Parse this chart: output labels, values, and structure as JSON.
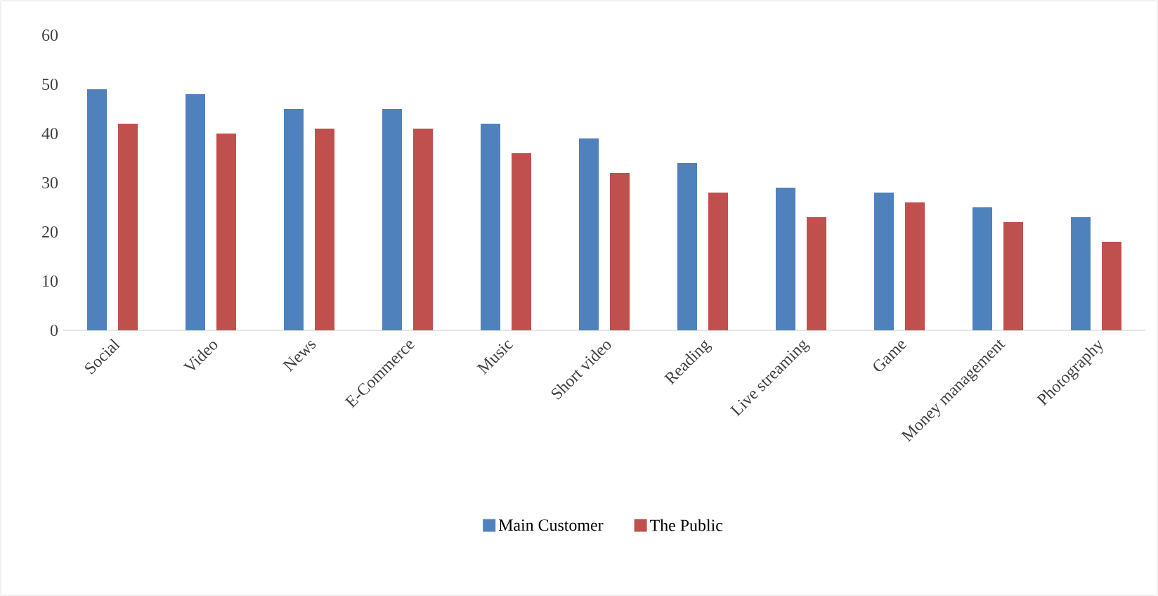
{
  "chart_data": {
    "type": "bar",
    "categories": [
      "Social",
      "Video",
      "News",
      "E-Commerce",
      "Music",
      "Short video",
      "Reading",
      "Live streaming",
      "Game",
      "Money management",
      "Photography"
    ],
    "series": [
      {
        "name": "Main Customer",
        "color": "#4f81bd",
        "values": [
          49,
          48,
          45,
          45,
          42,
          39,
          34,
          29,
          28,
          25,
          23
        ]
      },
      {
        "name": "The Public",
        "color": "#c0504d",
        "values": [
          42,
          40,
          41,
          41,
          36,
          32,
          28,
          23,
          26,
          22,
          18
        ]
      }
    ],
    "ylim": [
      0,
      60
    ],
    "yticks": [
      0,
      10,
      20,
      30,
      40,
      50,
      60
    ],
    "legend": "bottom"
  }
}
